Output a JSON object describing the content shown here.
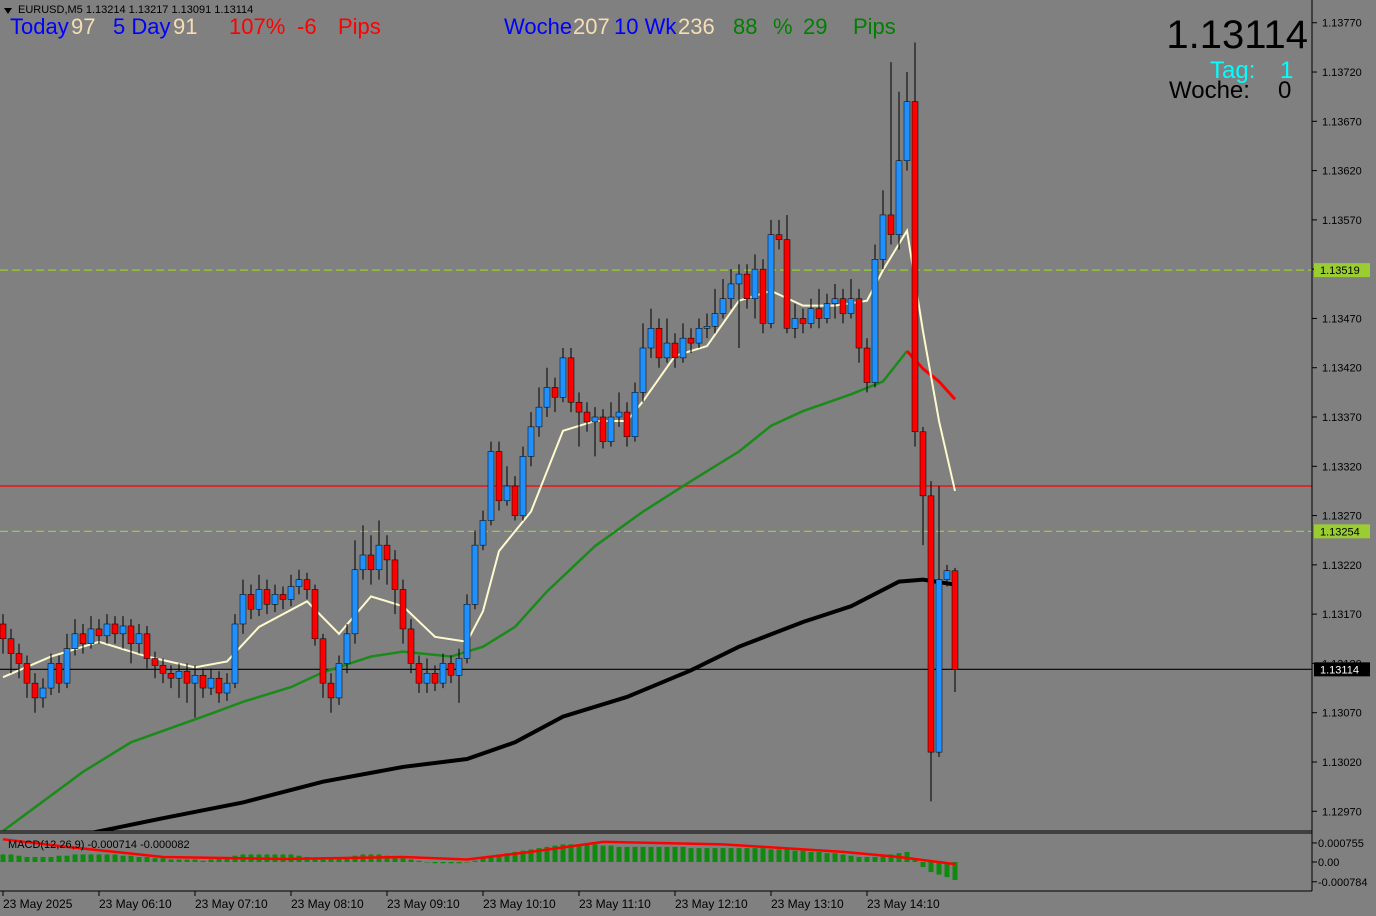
{
  "chart_data": [
    {
      "type": "candlestick",
      "header": "EURUSD,M5  1.13214 1.13217 1.13091 1.13114",
      "categories": [
        "23 May 2025",
        null,
        null,
        null,
        null,
        null,
        null,
        null,
        null,
        null,
        null,
        null,
        "23 May 06:10",
        null,
        null,
        null,
        null,
        null,
        null,
        null,
        null,
        null,
        null,
        null,
        "23 May 07:10",
        null,
        null,
        null,
        null,
        null,
        null,
        null,
        null,
        null,
        null,
        null,
        "23 May 08:10",
        null,
        null,
        null,
        null,
        null,
        null,
        null,
        null,
        null,
        null,
        null,
        "23 May 09:10",
        null,
        null,
        null,
        null,
        null,
        null,
        null,
        null,
        null,
        null,
        null,
        "23 May 10:10",
        null,
        null,
        null,
        null,
        null,
        null,
        null,
        null,
        null,
        null,
        null,
        "23 May 11:10",
        null,
        null,
        null,
        null,
        null,
        null,
        null,
        null,
        null,
        null,
        null,
        "23 May 12:10",
        null,
        null,
        null,
        null,
        null,
        null,
        null,
        null,
        null,
        null,
        null,
        "23 May 13:10",
        null,
        null,
        null,
        null,
        null,
        null,
        null,
        null,
        null,
        null,
        null,
        "23 May 14:10",
        null,
        null,
        null,
        null,
        null,
        null,
        null,
        null,
        null,
        null,
        null
      ],
      "open": [
        1.1316,
        1.13145,
        1.1313,
        1.1312,
        1.131,
        1.13085,
        1.13095,
        1.1312,
        1.131,
        1.13135,
        1.1315,
        1.1314,
        1.13155,
        1.13148,
        1.1316,
        1.1315,
        1.13158,
        1.1314,
        1.1315,
        1.13125,
        1.13118,
        1.1311,
        1.13105,
        1.13112,
        1.131,
        1.13108,
        1.13095,
        1.13105,
        1.1309,
        1.131,
        1.1316,
        1.1319,
        1.13175,
        1.13195,
        1.1318,
        1.1319,
        1.13185,
        1.13198,
        1.13205,
        1.13195,
        1.13145,
        1.131,
        1.13085,
        1.1312,
        1.1315,
        1.13215,
        1.1323,
        1.13215,
        1.1324,
        1.13225,
        1.13195,
        1.13155,
        1.1312,
        1.131,
        1.1311,
        1.131,
        1.1312,
        1.13108,
        1.13125,
        1.1318,
        1.1324,
        1.13265,
        1.13335,
        1.13285,
        1.133,
        1.1327,
        1.1333,
        1.1336,
        1.1338,
        1.134,
        1.1339,
        1.1343,
        1.13385,
        1.13375,
        1.13365,
        1.1337,
        1.13345,
        1.1337,
        1.13375,
        1.1335,
        1.13395,
        1.1344,
        1.1346,
        1.1343,
        1.13445,
        1.1343,
        1.1345,
        1.13445,
        1.1346,
        1.13462,
        1.13475,
        1.1349,
        1.13505,
        1.13515,
        1.1349,
        1.1352,
        1.13465,
        1.13555,
        1.1355,
        1.1346,
        1.1347,
        1.13465,
        1.1348,
        1.1347,
        1.13485,
        1.1349,
        1.13475,
        1.1349,
        1.1344,
        1.13405,
        1.1353,
        1.13575,
        1.13555,
        1.1363,
        1.1369,
        1.13355,
        1.1329,
        1.1303,
        1.13205,
        1.13214
      ],
      "high": [
        1.1317,
        1.13155,
        1.1314,
        1.13128,
        1.1311,
        1.13105,
        1.1313,
        1.13128,
        1.1315,
        1.13165,
        1.1316,
        1.13168,
        1.13165,
        1.1317,
        1.13168,
        1.13168,
        1.13165,
        1.1316,
        1.13158,
        1.13132,
        1.13125,
        1.13118,
        1.1312,
        1.1312,
        1.13118,
        1.13115,
        1.13115,
        1.13112,
        1.1311,
        1.1317,
        1.13205,
        1.132,
        1.1321,
        1.13205,
        1.132,
        1.13198,
        1.1321,
        1.13215,
        1.13212,
        1.132,
        1.1315,
        1.1311,
        1.13128,
        1.1316,
        1.13245,
        1.1326,
        1.1325,
        1.13265,
        1.1325,
        1.13235,
        1.13205,
        1.13165,
        1.13128,
        1.13125,
        1.13118,
        1.1313,
        1.13128,
        1.13135,
        1.1319,
        1.13255,
        1.13275,
        1.13345,
        1.13345,
        1.1332,
        1.1331,
        1.1334,
        1.13375,
        1.134,
        1.1342,
        1.1341,
        1.1344,
        1.1344,
        1.13395,
        1.13385,
        1.1338,
        1.13378,
        1.13385,
        1.13395,
        1.13385,
        1.13405,
        1.13465,
        1.1348,
        1.1347,
        1.1347,
        1.13455,
        1.13465,
        1.1346,
        1.1347,
        1.13475,
        1.135,
        1.1351,
        1.1352,
        1.13525,
        1.13525,
        1.13535,
        1.1353,
        1.1357,
        1.1357,
        1.13575,
        1.13485,
        1.1348,
        1.1349,
        1.135,
        1.13495,
        1.13505,
        1.135,
        1.1351,
        1.135,
        1.1345,
        1.13545,
        1.136,
        1.1373,
        1.137,
        1.1372,
        1.1375,
        1.1336,
        1.13305,
        1.133,
        1.1322,
        1.13217
      ],
      "low": [
        1.1313,
        1.1311,
        1.13105,
        1.13085,
        1.1307,
        1.13075,
        1.13088,
        1.1309,
        1.13095,
        1.13128,
        1.1313,
        1.13135,
        1.1314,
        1.1314,
        1.1314,
        1.13135,
        1.1312,
        1.1313,
        1.13115,
        1.13105,
        1.131,
        1.13095,
        1.13085,
        1.1308,
        1.13065,
        1.13085,
        1.13088,
        1.1308,
        1.13082,
        1.13095,
        1.1315,
        1.13165,
        1.13168,
        1.1317,
        1.13172,
        1.13175,
        1.13178,
        1.1319,
        1.13185,
        1.13138,
        1.13085,
        1.1307,
        1.13078,
        1.1311,
        1.1314,
        1.13205,
        1.132,
        1.13205,
        1.132,
        1.1317,
        1.1314,
        1.1311,
        1.1309,
        1.1309,
        1.13092,
        1.13095,
        1.131,
        1.1308,
        1.1312,
        1.13175,
        1.13235,
        1.1326,
        1.13275,
        1.1328,
        1.13265,
        1.13265,
        1.1332,
        1.1335,
        1.1337,
        1.13375,
        1.13385,
        1.13375,
        1.1334,
        1.13355,
        1.1333,
        1.13338,
        1.1334,
        1.1336,
        1.1334,
        1.13345,
        1.13385,
        1.1343,
        1.1342,
        1.13425,
        1.1342,
        1.13425,
        1.13435,
        1.1344,
        1.1345,
        1.13455,
        1.1347,
        1.1348,
        1.1344,
        1.1348,
        1.1347,
        1.13455,
        1.1346,
        1.1354,
        1.13455,
        1.1345,
        1.13455,
        1.1346,
        1.1346,
        1.13465,
        1.1347,
        1.13465,
        1.1347,
        1.13425,
        1.13395,
        1.134,
        1.1352,
        1.13545,
        1.1354,
        1.1362,
        1.1334,
        1.1324,
        1.1298,
        1.13025,
        1.13198,
        1.13091
      ],
      "close": [
        1.13145,
        1.1313,
        1.1312,
        1.131,
        1.13085,
        1.13095,
        1.1312,
        1.131,
        1.13135,
        1.1315,
        1.1314,
        1.13155,
        1.13148,
        1.1316,
        1.1315,
        1.13158,
        1.1314,
        1.1315,
        1.13125,
        1.13118,
        1.1311,
        1.13105,
        1.13112,
        1.131,
        1.13108,
        1.13095,
        1.13105,
        1.1309,
        1.131,
        1.1316,
        1.1319,
        1.13175,
        1.13195,
        1.1318,
        1.1319,
        1.13185,
        1.13198,
        1.13205,
        1.13195,
        1.13145,
        1.131,
        1.13085,
        1.1312,
        1.1315,
        1.13215,
        1.1323,
        1.13215,
        1.1324,
        1.13225,
        1.13195,
        1.13155,
        1.1312,
        1.131,
        1.1311,
        1.131,
        1.1312,
        1.13108,
        1.13125,
        1.1318,
        1.1324,
        1.13265,
        1.13335,
        1.13285,
        1.133,
        1.1327,
        1.1333,
        1.1336,
        1.1338,
        1.134,
        1.1339,
        1.1343,
        1.13385,
        1.13375,
        1.13365,
        1.1337,
        1.13345,
        1.1337,
        1.13375,
        1.1335,
        1.13395,
        1.1344,
        1.1346,
        1.1343,
        1.13445,
        1.1343,
        1.1345,
        1.13445,
        1.1346,
        1.13462,
        1.13475,
        1.1349,
        1.13505,
        1.13515,
        1.1349,
        1.1352,
        1.13465,
        1.13555,
        1.1355,
        1.1346,
        1.1347,
        1.13465,
        1.1348,
        1.1347,
        1.13485,
        1.1349,
        1.13475,
        1.1349,
        1.1344,
        1.13405,
        1.1353,
        1.13575,
        1.13555,
        1.1363,
        1.1369,
        1.13355,
        1.1329,
        1.1303,
        1.13205,
        1.13214,
        1.13114
      ],
      "up_color": "#1e90ff",
      "down_color": "#ff0000",
      "ylim": [
        1.12951,
        1.13788
      ],
      "yticks": [
        {
          "value": 1.1377,
          "label": "1.13770"
        },
        {
          "value": 1.1372,
          "label": "1.13720"
        },
        {
          "value": 1.1367,
          "label": "1.13670"
        },
        {
          "value": 1.1362,
          "label": "1.13620"
        },
        {
          "value": 1.1357,
          "label": "1.13570"
        },
        {
          "value": 1.1352,
          "label": "1.13520"
        },
        {
          "value": 1.1347,
          "label": "1.13470"
        },
        {
          "value": 1.1342,
          "label": "1.13420"
        },
        {
          "value": 1.1337,
          "label": "1.13370"
        },
        {
          "value": 1.1332,
          "label": "1.13320"
        },
        {
          "value": 1.1327,
          "label": "1.13270"
        },
        {
          "value": 1.1322,
          "label": "1.13220"
        },
        {
          "value": 1.1317,
          "label": "1.13170"
        },
        {
          "value": 1.1312,
          "label": "1.13120"
        },
        {
          "value": 1.1307,
          "label": "1.13070"
        },
        {
          "value": 1.1302,
          "label": "1.13020"
        },
        {
          "value": 1.1297,
          "label": "1.12970"
        }
      ],
      "lines": [
        {
          "color": "#1a8a1a",
          "width": 2.5,
          "x": [
            0,
            10,
            16,
            26,
            30,
            36,
            40,
            46,
            50,
            56,
            60,
            64,
            68,
            74,
            80,
            86,
            92,
            96,
            100,
            106,
            110,
            113
          ],
          "values": [
            1.1295,
            1.1301,
            1.1304,
            1.13069,
            1.13081,
            1.13096,
            1.13111,
            1.13127,
            1.13132,
            1.13127,
            1.13137,
            1.13157,
            1.13193,
            1.13239,
            1.13274,
            1.13305,
            1.13335,
            1.13361,
            1.13376,
            1.13393,
            1.13406,
            1.13437
          ]
        },
        {
          "color": "#ff0000",
          "width": 3,
          "x": [
            113,
            115,
            117,
            119
          ],
          "values": [
            1.13437,
            1.13419,
            1.13406,
            1.13388
          ]
        },
        {
          "color": "#000000",
          "width": 4,
          "x": [
            11,
            20,
            30,
            40,
            50,
            58,
            64,
            70,
            78,
            86,
            92,
            100,
            106,
            112,
            115,
            119
          ],
          "values": [
            1.12948,
            1.12963,
            1.12979,
            1.13,
            1.13015,
            1.13023,
            1.1304,
            1.13066,
            1.13086,
            1.13113,
            1.13137,
            1.13162,
            1.13178,
            1.13203,
            1.13205,
            1.132
          ]
        },
        {
          "color": "#fffacd",
          "width": 2,
          "x": [
            0,
            6,
            12,
            18,
            24,
            28,
            32,
            38,
            42,
            46,
            50,
            54,
            58,
            60,
            62,
            66,
            70,
            74,
            78,
            80,
            84,
            88,
            92,
            96,
            100,
            104,
            108,
            110,
            113,
            115,
            117,
            119
          ],
          "values": [
            1.13106,
            1.13127,
            1.13142,
            1.13127,
            1.13116,
            1.13122,
            1.13157,
            1.13183,
            1.1315,
            1.13188,
            1.13178,
            1.13147,
            1.13142,
            1.13173,
            1.13234,
            1.13274,
            1.13356,
            1.13366,
            1.13366,
            1.13386,
            1.13432,
            1.13442,
            1.13488,
            1.13498,
            1.13483,
            1.13483,
            1.13488,
            1.13519,
            1.13559,
            1.13457,
            1.13366,
            1.13295
          ]
        }
      ],
      "hlines": [
        {
          "value": 1.13519,
          "color": "#9acd32",
          "dash": true,
          "label": true
        },
        {
          "value": 1.13254,
          "color": "#9acd32",
          "dash": true,
          "label": true
        },
        {
          "value": 1.133,
          "color": "#ff0000",
          "dash": false,
          "label": false
        },
        {
          "value": 1.13114,
          "color": "#000000",
          "dash": false,
          "label": true
        }
      ]
    },
    {
      "type": "macd",
      "label": "MACD(12,26,9) -0.000714 -0.000082",
      "color": "#0f8a0f",
      "values": [
        0.0003,
        0.0003,
        0.00025,
        0.0002,
        0.0002,
        0.0002,
        0.0002,
        0.00025,
        0.00025,
        0.0003,
        0.0003,
        0.0003,
        0.0003,
        0.0003,
        0.0003,
        0.00025,
        0.00025,
        0.0002,
        0.0002,
        0.00015,
        0.00015,
        0.0001,
        0.0001,
        0.0001,
        0.0001,
        5e-05,
        0.0001,
        0.00015,
        0.0002,
        0.00025,
        0.0003,
        0.0003,
        0.0003,
        0.0003,
        0.0003,
        0.0003,
        0.0003,
        0.00025,
        0.0002,
        0.00015,
        0.00015,
        0.00015,
        0.00015,
        0.0002,
        0.00025,
        0.0003,
        0.0003,
        0.0003,
        0.00025,
        0.0002,
        0.00015,
        0.0001,
        5e-05,
        0,
        -5e-05,
        -5e-05,
        -5e-05,
        -5e-05,
        0,
        5e-05,
        0.00015,
        0.00025,
        0.0003,
        0.00035,
        0.0004,
        0.00045,
        0.0005,
        0.00055,
        0.0006,
        0.00065,
        0.0007,
        0.0007,
        0.0007,
        0.0007,
        0.0007,
        0.00065,
        0.00065,
        0.0006,
        0.0006,
        0.0006,
        0.0006,
        0.0006,
        0.0006,
        0.0006,
        0.0006,
        0.0006,
        0.00055,
        0.00055,
        0.00055,
        0.00055,
        0.00055,
        0.00055,
        0.00055,
        0.00055,
        0.00055,
        0.00055,
        0.0005,
        0.0005,
        0.0005,
        0.00045,
        0.00045,
        0.0004,
        0.0004,
        0.00035,
        0.00035,
        0.0003,
        0.00025,
        0.0002,
        0.0002,
        0.0002,
        0.00025,
        0.0003,
        0.00035,
        0.0004,
        0.0001,
        -0.0002,
        -0.0004,
        -0.0005,
        -0.0006,
        -0.000714
      ],
      "signal": {
        "color": "#ff0000",
        "x": [
          0,
          8,
          20,
          35,
          50,
          58,
          66,
          75,
          90,
          105,
          112,
          119
        ],
        "values": [
          0.0009,
          0.0006,
          0.0002,
          0.00012,
          0.0002,
          0.0001,
          0.0004,
          0.0008,
          0.0007,
          0.0004,
          0.0002,
          -8.2e-05
        ]
      },
      "ylim": [
        -0.00111,
        0.00115
      ],
      "yticks": [
        0.000755,
        {
          "value": 0,
          "label": "0.00"
        },
        -0.000784
      ]
    }
  ],
  "stats": [
    {
      "text": "Today",
      "color": "#0000ff"
    },
    {
      "text": 97,
      "color": "#f5deb3"
    },
    {
      "text": "5 Day",
      "color": "#0000ff"
    },
    {
      "text": 91,
      "color": "#f5deb3"
    },
    {
      "text": "107%",
      "color": "#ff0000"
    },
    {
      "text": -6,
      "color": "#ff0000"
    },
    {
      "text": "Pips",
      "color": "#ff0000"
    },
    {
      "text": "Woche",
      "color": "#0000ff"
    },
    {
      "text": 207,
      "color": "#f5deb3"
    },
    {
      "text": "10 Wk",
      "color": "#0000ff"
    },
    {
      "text": 236,
      "color": "#f5deb3"
    },
    {
      "text": 88,
      "color": "#008000"
    },
    {
      "text": "%",
      "color": "#008000"
    },
    {
      "text": 29,
      "color": "#008000"
    },
    {
      "text": "Pips",
      "color": "#008000"
    }
  ],
  "bid": 1.13114,
  "day": {
    "label": "Tag:",
    "value": 1
  },
  "week": {
    "label": "Woche:",
    "value": 0
  }
}
